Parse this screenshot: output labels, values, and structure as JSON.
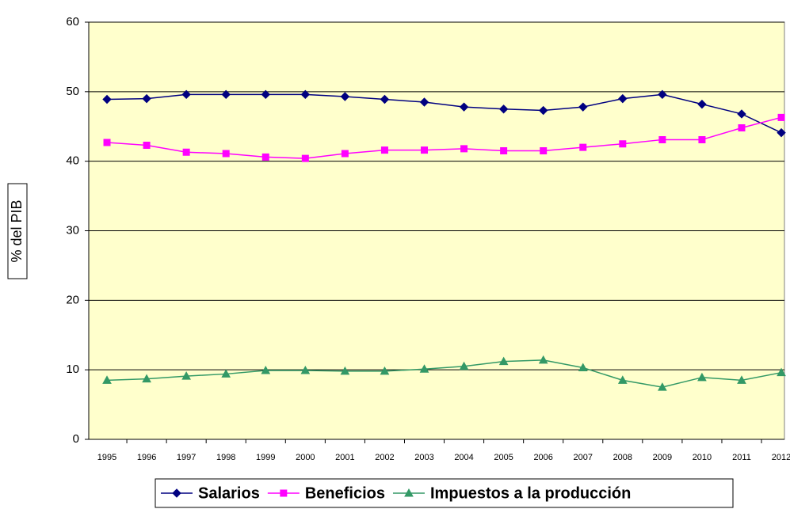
{
  "chart_data": {
    "type": "line",
    "y_label": "% del PIB",
    "categories": [
      "1995",
      "1996",
      "1997",
      "1998",
      "1999",
      "2000",
      "2001",
      "2002",
      "2003",
      "2004",
      "2005",
      "2006",
      "2007",
      "2008",
      "2009",
      "2010",
      "2011",
      "2012"
    ],
    "series": [
      {
        "name": "Salarios",
        "color": "#000080",
        "marker": "diamond",
        "values": [
          48.9,
          49.0,
          49.6,
          49.6,
          49.6,
          49.6,
          49.3,
          48.9,
          48.5,
          47.8,
          47.5,
          47.3,
          47.8,
          49.0,
          49.6,
          48.2,
          46.8,
          44.1
        ]
      },
      {
        "name": "Beneficios",
        "color": "#ff00ff",
        "marker": "square",
        "values": [
          42.7,
          42.3,
          41.3,
          41.1,
          40.6,
          40.4,
          41.1,
          41.6,
          41.6,
          41.8,
          41.5,
          41.5,
          42.0,
          42.5,
          43.1,
          43.1,
          44.8,
          46.3
        ]
      },
      {
        "name": "Impuestos a la producción",
        "color": "#339966",
        "marker": "triangle",
        "values": [
          8.5,
          8.7,
          9.1,
          9.4,
          9.9,
          9.9,
          9.8,
          9.8,
          10.1,
          10.5,
          11.2,
          11.4,
          10.3,
          8.5,
          7.5,
          8.9,
          8.5,
          9.6
        ]
      }
    ],
    "ylim": [
      0,
      60
    ],
    "yticks": [
      0,
      10,
      20,
      30,
      40,
      50,
      60
    ],
    "grid": true,
    "background": "#ffffcc",
    "legend": "bottom"
  }
}
